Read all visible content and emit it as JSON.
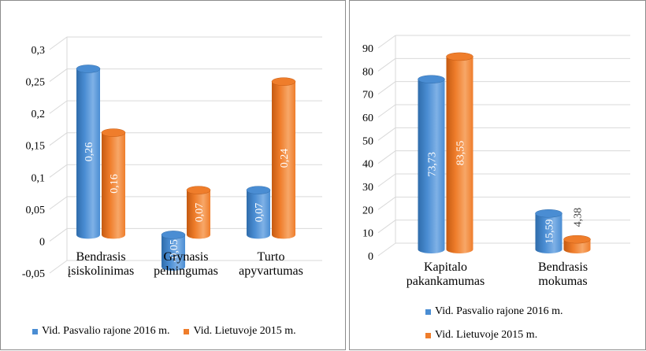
{
  "chart_data": [
    {
      "type": "bar",
      "categories": [
        "Bendrasis įsiskolinimas",
        "Grynasis pelningumas",
        "Turto apyvartumas"
      ],
      "category_lines": [
        [
          "Bendrasis",
          "įsiskolinimas"
        ],
        [
          "Grynasis",
          "pelningumas"
        ],
        [
          "Turto",
          "apyvartumas"
        ]
      ],
      "series": [
        {
          "name": "Vid. Pasvalio rajone  2016 m.",
          "values": [
            0.26,
            -0.05,
            0.07
          ],
          "labels": [
            "0,26",
            "-0,05",
            "0,07"
          ]
        },
        {
          "name": "Vid. Lietuvoje  2015 m.",
          "values": [
            0.16,
            0.07,
            0.24
          ],
          "labels": [
            "0,16",
            "0,07",
            "0,24"
          ]
        }
      ],
      "yticks": [
        -0.05,
        0,
        0.05,
        0.1,
        0.15,
        0.2,
        0.25,
        0.3
      ],
      "ytick_labels": [
        "-0,05",
        "0",
        "0,05",
        "0,1",
        "0,15",
        "0,2",
        "0,25",
        "0,3"
      ],
      "ylim": [
        -0.05,
        0.3
      ],
      "grid": true,
      "legend_position": "bottom"
    },
    {
      "type": "bar",
      "categories": [
        "Kapitalo pakankamumas",
        "Bendrasis mokumas"
      ],
      "category_lines": [
        [
          "Kapitalo",
          "pakankamumas"
        ],
        [
          "Bendrasis",
          "mokumas"
        ]
      ],
      "series": [
        {
          "name": "Vid. Pasvalio rajone  2016 m.",
          "values": [
            73.73,
            15.59
          ],
          "labels": [
            "73,73",
            "15,59"
          ]
        },
        {
          "name": "Vid. Lietuvoje  2015 m.",
          "values": [
            83.55,
            4.38
          ],
          "labels": [
            "83,55",
            "4,38"
          ]
        }
      ],
      "yticks": [
        0,
        10,
        20,
        30,
        40,
        50,
        60,
        70,
        80,
        90
      ],
      "ytick_labels": [
        "0",
        "10",
        "20",
        "30",
        "40",
        "50",
        "60",
        "70",
        "80",
        "90"
      ],
      "ylim": [
        0,
        90
      ],
      "grid": true,
      "legend_position": "bottom"
    }
  ],
  "colors": {
    "blue": "#4a8dd3",
    "blue_dark": "#2f6cab",
    "blue_light": "#7fb1e6",
    "orange": "#ef7d2b",
    "orange_dark": "#c55a11",
    "orange_light": "#f7a768",
    "grid": "#d9d9d9"
  }
}
